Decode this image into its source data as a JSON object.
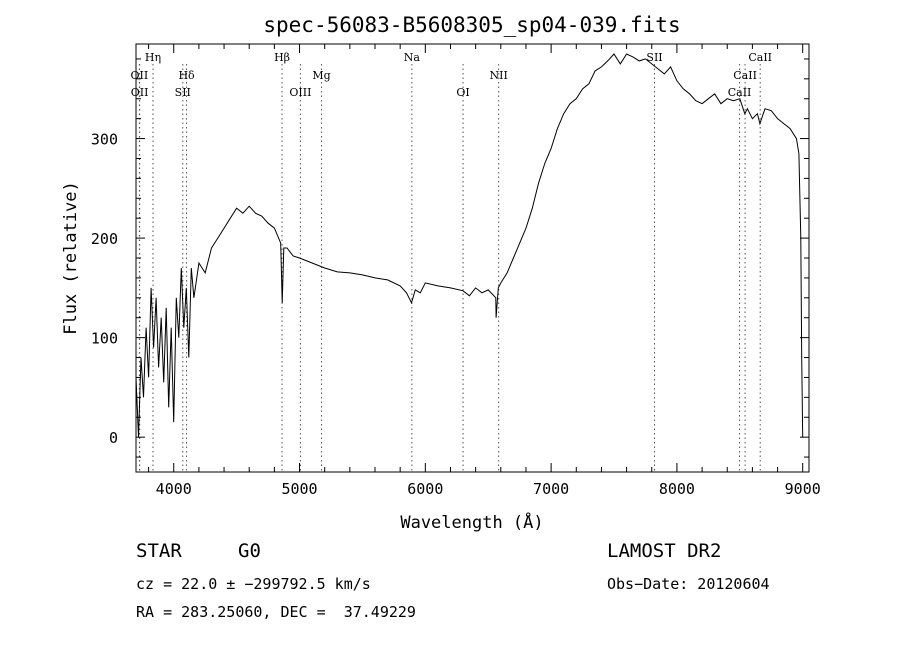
{
  "chart_data": {
    "type": "line",
    "title": "spec-56083-B5608305_sp04-039.fits",
    "xlabel": "Wavelength (Å)",
    "ylabel": "Flux (relative)",
    "xlim": [
      3700,
      9050
    ],
    "ylim": [
      -35,
      395
    ],
    "xticks": [
      4000,
      5000,
      6000,
      7000,
      8000,
      9000
    ],
    "yticks": [
      0,
      100,
      200,
      300
    ],
    "series": [
      {
        "points": [
          [
            3700,
            60
          ],
          [
            3720,
            0
          ],
          [
            3740,
            80
          ],
          [
            3760,
            40
          ],
          [
            3780,
            110
          ],
          [
            3800,
            60
          ],
          [
            3820,
            150
          ],
          [
            3840,
            90
          ],
          [
            3860,
            140
          ],
          [
            3880,
            70
          ],
          [
            3900,
            120
          ],
          [
            3920,
            55
          ],
          [
            3940,
            130
          ],
          [
            3960,
            30
          ],
          [
            3980,
            110
          ],
          [
            4000,
            15
          ],
          [
            4020,
            140
          ],
          [
            4040,
            100
          ],
          [
            4060,
            170
          ],
          [
            4080,
            110
          ],
          [
            4100,
            150
          ],
          [
            4120,
            80
          ],
          [
            4140,
            170
          ],
          [
            4160,
            140
          ],
          [
            4200,
            175
          ],
          [
            4250,
            165
          ],
          [
            4300,
            190
          ],
          [
            4350,
            200
          ],
          [
            4400,
            210
          ],
          [
            4450,
            220
          ],
          [
            4500,
            230
          ],
          [
            4550,
            225
          ],
          [
            4600,
            232
          ],
          [
            4650,
            225
          ],
          [
            4700,
            222
          ],
          [
            4750,
            215
          ],
          [
            4800,
            210
          ],
          [
            4850,
            195
          ],
          [
            4862,
            135
          ],
          [
            4875,
            190
          ],
          [
            4900,
            190
          ],
          [
            4950,
            182
          ],
          [
            5000,
            180
          ],
          [
            5100,
            175
          ],
          [
            5200,
            170
          ],
          [
            5300,
            166
          ],
          [
            5400,
            165
          ],
          [
            5500,
            163
          ],
          [
            5600,
            160
          ],
          [
            5700,
            158
          ],
          [
            5800,
            152
          ],
          [
            5850,
            145
          ],
          [
            5890,
            135
          ],
          [
            5920,
            148
          ],
          [
            5960,
            145
          ],
          [
            6000,
            155
          ],
          [
            6100,
            152
          ],
          [
            6200,
            150
          ],
          [
            6300,
            147
          ],
          [
            6350,
            142
          ],
          [
            6400,
            150
          ],
          [
            6450,
            145
          ],
          [
            6500,
            148
          ],
          [
            6560,
            140
          ],
          [
            6563,
            120
          ],
          [
            6580,
            150
          ],
          [
            6600,
            155
          ],
          [
            6650,
            165
          ],
          [
            6700,
            180
          ],
          [
            6750,
            195
          ],
          [
            6800,
            210
          ],
          [
            6850,
            230
          ],
          [
            6900,
            255
          ],
          [
            6950,
            275
          ],
          [
            7000,
            290
          ],
          [
            7050,
            310
          ],
          [
            7100,
            325
          ],
          [
            7150,
            335
          ],
          [
            7200,
            340
          ],
          [
            7250,
            350
          ],
          [
            7300,
            355
          ],
          [
            7350,
            368
          ],
          [
            7400,
            372
          ],
          [
            7450,
            378
          ],
          [
            7500,
            385
          ],
          [
            7550,
            375
          ],
          [
            7600,
            385
          ],
          [
            7650,
            382
          ],
          [
            7700,
            378
          ],
          [
            7750,
            380
          ],
          [
            7800,
            375
          ],
          [
            7850,
            370
          ],
          [
            7900,
            365
          ],
          [
            7950,
            372
          ],
          [
            8000,
            358
          ],
          [
            8050,
            350
          ],
          [
            8100,
            345
          ],
          [
            8150,
            338
          ],
          [
            8200,
            335
          ],
          [
            8250,
            340
          ],
          [
            8300,
            345
          ],
          [
            8350,
            335
          ],
          [
            8400,
            340
          ],
          [
            8450,
            338
          ],
          [
            8500,
            340
          ],
          [
            8540,
            325
          ],
          [
            8560,
            330
          ],
          [
            8600,
            320
          ],
          [
            8640,
            325
          ],
          [
            8660,
            315
          ],
          [
            8700,
            330
          ],
          [
            8750,
            328
          ],
          [
            8800,
            320
          ],
          [
            8850,
            315
          ],
          [
            8900,
            310
          ],
          [
            8950,
            300
          ],
          [
            8970,
            285
          ],
          [
            8985,
            200
          ],
          [
            8992,
            80
          ],
          [
            9000,
            0
          ]
        ]
      }
    ],
    "lines": [
      {
        "label": "Hη",
        "x": 3835,
        "row": 0
      },
      {
        "label": "OII",
        "x": 3727,
        "row": 1
      },
      {
        "label": "OII",
        "x": 3729,
        "row": 2
      },
      {
        "label": "Hδ",
        "x": 4102,
        "row": 1
      },
      {
        "label": "SII",
        "x": 4072,
        "row": 2
      },
      {
        "label": "Hβ",
        "x": 4861,
        "row": 0
      },
      {
        "label": "Mg",
        "x": 5175,
        "row": 1
      },
      {
        "label": "OIII",
        "x": 5007,
        "row": 2
      },
      {
        "label": "Na",
        "x": 5893,
        "row": 0
      },
      {
        "label": "OI",
        "x": 6300,
        "row": 2
      },
      {
        "label": "NII",
        "x": 6583,
        "row": 1
      },
      {
        "label": "SII",
        "x": 7822,
        "row": 0
      },
      {
        "label": "CaII",
        "x": 8662,
        "row": 0
      },
      {
        "label": "CaII",
        "x": 8542,
        "row": 1
      },
      {
        "label": "CaII",
        "x": 8498,
        "row": 2
      }
    ]
  },
  "info": {
    "object_class": "STAR",
    "subclass": "G0",
    "survey": "LAMOST DR2",
    "cz": "cz = 22.0 ± −299792.5 km/s",
    "obs_date": "Obs−Date: 20120604",
    "radec": "RA = 283.25060, DEC =  37.49229"
  }
}
